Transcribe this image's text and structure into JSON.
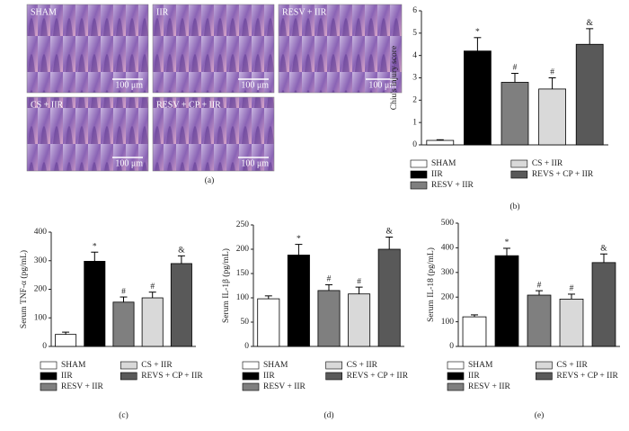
{
  "panel_a": {
    "label": "(a)",
    "images": [
      {
        "label": "SHAM",
        "scale": "100 μm"
      },
      {
        "label": "IIR",
        "scale": "100 μm"
      },
      {
        "label": "RESV + IIR",
        "scale": "100 μm"
      },
      {
        "label": "CS + IIR",
        "scale": "100 μm"
      },
      {
        "label": "RESV + CP + IIR",
        "scale": "100 μm"
      }
    ]
  },
  "chart_data": [
    {
      "type": "bar",
      "panel_label": "(b)",
      "ylabel": "Chiu's injury score",
      "categories": [
        "SHAM",
        "IIR",
        "RESV + IIR",
        "CS + IIR",
        "REVS + CP + IIR"
      ],
      "colors": [
        "#ffffff",
        "#000000",
        "#7f7f7f",
        "#d9d9d9",
        "#595959"
      ],
      "values": [
        0.2,
        4.2,
        2.8,
        2.5,
        4.5
      ],
      "errors": [
        0.03,
        0.6,
        0.4,
        0.5,
        0.7
      ],
      "markers": [
        null,
        "*",
        "#",
        "#",
        "&"
      ],
      "ylim": [
        0,
        6
      ],
      "yticks": [
        0,
        1,
        2,
        3,
        4,
        5,
        6
      ]
    },
    {
      "type": "bar",
      "panel_label": "(c)",
      "ylabel": "Serum TNF-α (pg/mL)",
      "categories": [
        "SHAM",
        "IIR",
        "RESV + IIR",
        "CS + IIR",
        "REVS + CP + IIR"
      ],
      "colors": [
        "#ffffff",
        "#000000",
        "#7f7f7f",
        "#d9d9d9",
        "#595959"
      ],
      "values": [
        42,
        298,
        155,
        170,
        290
      ],
      "errors": [
        8,
        32,
        18,
        20,
        27
      ],
      "markers": [
        null,
        "*",
        "#",
        "#",
        "&"
      ],
      "ylim": [
        0,
        400
      ],
      "yticks": [
        0,
        100,
        200,
        300,
        400
      ]
    },
    {
      "type": "bar",
      "panel_label": "(d)",
      "ylabel": "Serum IL-1β (pg/mL)",
      "categories": [
        "SHAM",
        "IIR",
        "RESV + IIR",
        "CS + IIR",
        "REVS + CP + IIR"
      ],
      "colors": [
        "#ffffff",
        "#000000",
        "#7f7f7f",
        "#d9d9d9",
        "#595959"
      ],
      "values": [
        98,
        188,
        115,
        108,
        200
      ],
      "errors": [
        6,
        22,
        12,
        14,
        25
      ],
      "markers": [
        null,
        "*",
        "#",
        "#",
        "&"
      ],
      "ylim": [
        0,
        250
      ],
      "yticks": [
        0,
        50,
        100,
        150,
        200,
        250
      ]
    },
    {
      "type": "bar",
      "panel_label": "(e)",
      "ylabel": "Serum IL-18 (pg/mL)",
      "categories": [
        "SHAM",
        "IIR",
        "RESV + IIR",
        "CS + IIR",
        "REVS + CP + IIR"
      ],
      "colors": [
        "#ffffff",
        "#000000",
        "#7f7f7f",
        "#d9d9d9",
        "#595959"
      ],
      "values": [
        120,
        368,
        208,
        192,
        340
      ],
      "errors": [
        8,
        30,
        18,
        20,
        35
      ],
      "markers": [
        null,
        "*",
        "#",
        "#",
        "&"
      ],
      "ylim": [
        0,
        500
      ],
      "yticks": [
        0,
        100,
        200,
        300,
        400,
        500
      ]
    }
  ]
}
